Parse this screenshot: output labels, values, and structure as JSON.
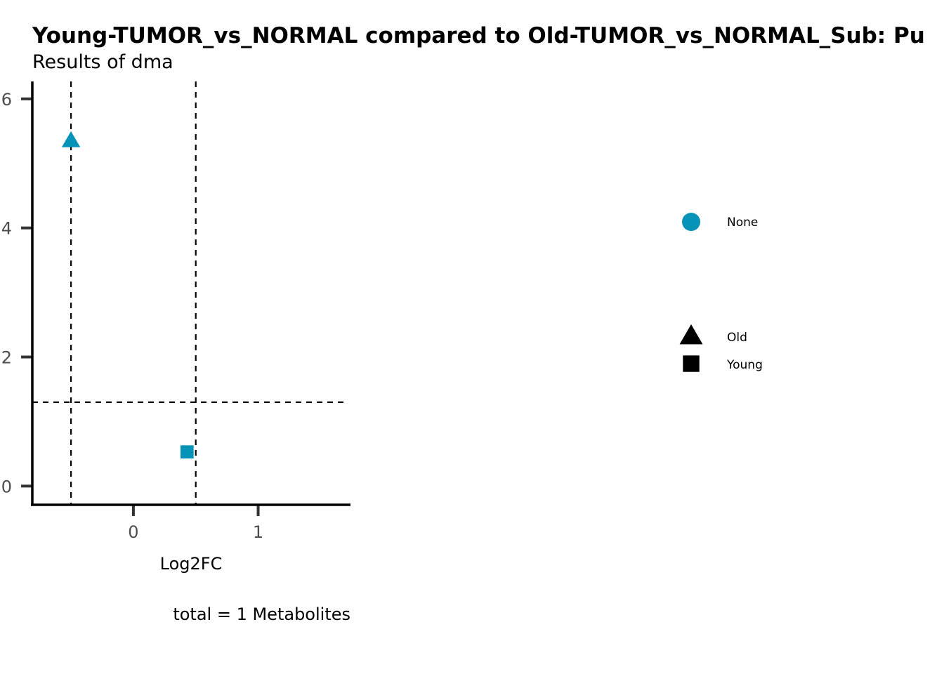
{
  "chart_data": {
    "type": "scatter",
    "title": "Young-TUMOR_vs_NORMAL compared to Old-TUMOR_vs_NORMAL_Sub: Pu",
    "subtitle": "Results of dma",
    "xlabel": "Log2FC",
    "ylabel": "",
    "caption": "total = 1 Metabolites",
    "xlim": [
      -0.81,
      1.74
    ],
    "ylim": [
      -0.29,
      6.27
    ],
    "x_ticks": [
      0,
      1
    ],
    "y_ticks": [
      0,
      2,
      4,
      6
    ],
    "thresholds": {
      "x": [
        -0.5,
        0.5
      ],
      "y": 1.3
    },
    "grid": false,
    "points": [
      {
        "x": -0.5,
        "y": 5.35,
        "shape": "triangle",
        "group": "Old",
        "color": "#0593b8"
      },
      {
        "x": 0.43,
        "y": 0.53,
        "shape": "square",
        "group": "Young",
        "color": "#0593b8"
      }
    ],
    "legend": {
      "position": "right",
      "color_items": [
        {
          "label": "None",
          "color": "#0593b8",
          "shape": "circle"
        }
      ],
      "shape_items": [
        {
          "label": "Old",
          "shape": "triangle"
        },
        {
          "label": "Young",
          "shape": "square"
        }
      ]
    }
  }
}
